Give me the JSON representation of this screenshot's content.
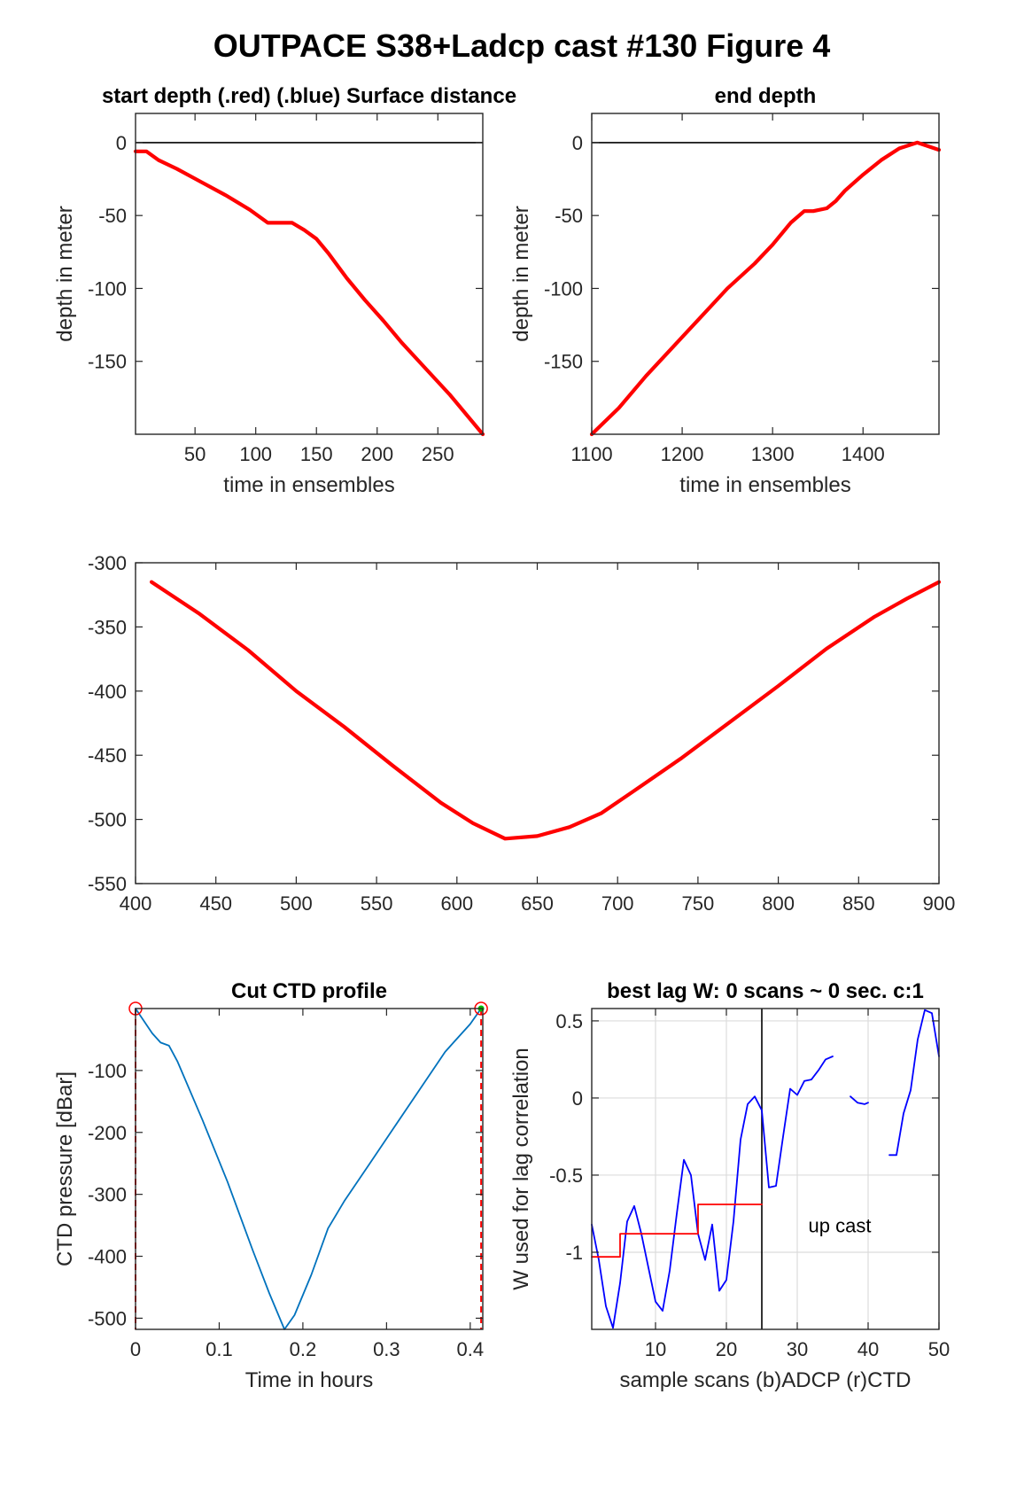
{
  "figure": {
    "title": "OUTPACE S38+Ladcp cast #130    Figure 4"
  },
  "chart_data": [
    {
      "id": "p1",
      "type": "line",
      "title": "start depth (.red) (.blue) Surface distance",
      "xlabel": "time in ensembles",
      "ylabel": "depth in meter",
      "xlim": [
        1,
        287
      ],
      "ylim": [
        -200,
        20
      ],
      "xticks": [
        50,
        100,
        150,
        200,
        250
      ],
      "yticks": [
        0,
        -50,
        -100,
        -150
      ],
      "zero_line": true,
      "grid": false,
      "series": [
        {
          "color": "#ff0000",
          "x": [
            1,
            10,
            20,
            35,
            55,
            75,
            95,
            110,
            130,
            140,
            150,
            160,
            175,
            190,
            205,
            220,
            240,
            260,
            287
          ],
          "y": [
            -6,
            -6,
            -12,
            -18,
            -27,
            -36,
            -46,
            -55,
            -55,
            -60,
            -66,
            -76,
            -93,
            -108,
            -122,
            -137,
            -155,
            -173,
            -200
          ]
        }
      ]
    },
    {
      "id": "p2",
      "type": "line",
      "title": "end depth",
      "xlabel": "time in ensembles",
      "ylabel": "depth in meter",
      "xlim": [
        1100,
        1484
      ],
      "ylim": [
        -200,
        20
      ],
      "xticks": [
        1100,
        1200,
        1300,
        1400
      ],
      "yticks": [
        0,
        -50,
        -100,
        -150
      ],
      "zero_line": true,
      "grid": false,
      "series": [
        {
          "color": "#ff0000",
          "x": [
            1100,
            1130,
            1160,
            1190,
            1220,
            1250,
            1280,
            1300,
            1320,
            1335,
            1345,
            1360,
            1370,
            1380,
            1400,
            1420,
            1440,
            1460,
            1484
          ],
          "y": [
            -200,
            -182,
            -160,
            -140,
            -120,
            -100,
            -83,
            -70,
            -55,
            -47,
            -47,
            -45,
            -40,
            -33,
            -22,
            -12,
            -4,
            0,
            -5
          ]
        }
      ]
    },
    {
      "id": "p3",
      "type": "line",
      "title": "",
      "xlabel": "",
      "ylabel": "",
      "xlim": [
        400,
        900
      ],
      "ylim": [
        -550,
        -300
      ],
      "xticks": [
        400,
        450,
        500,
        550,
        600,
        650,
        700,
        750,
        800,
        850,
        900
      ],
      "yticks": [
        -300,
        -350,
        -400,
        -450,
        -500,
        -550
      ],
      "zero_line": false,
      "grid": false,
      "series": [
        {
          "color": "#ff0000",
          "x": [
            410,
            440,
            470,
            500,
            530,
            560,
            590,
            610,
            630,
            650,
            670,
            690,
            710,
            740,
            770,
            800,
            830,
            860,
            880,
            900
          ],
          "y": [
            -315,
            -340,
            -368,
            -400,
            -428,
            -458,
            -487,
            -503,
            -515,
            -513,
            -506,
            -495,
            -478,
            -452,
            -424,
            -396,
            -367,
            -342,
            -328,
            -315
          ]
        }
      ]
    },
    {
      "id": "p4",
      "type": "line",
      "title": "Cut CTD profile",
      "xlabel": "Time in hours",
      "ylabel": "CTD pressure [dBar]",
      "xlim": [
        0,
        0.415
      ],
      "ylim": [
        -518,
        0
      ],
      "xticks": [
        0,
        0.1,
        0.2,
        0.3,
        0.4
      ],
      "xticklabels": [
        "0",
        "0.1",
        "0.2",
        "0.3",
        "0.4"
      ],
      "yticks": [
        -100,
        -200,
        -300,
        -400,
        -500
      ],
      "zero_line": false,
      "grid": false,
      "series": [
        {
          "color": "#0072bd",
          "x": [
            0,
            0.02,
            0.03,
            0.04,
            0.05,
            0.08,
            0.11,
            0.14,
            0.16,
            0.178,
            0.19,
            0.21,
            0.23,
            0.25,
            0.28,
            0.31,
            0.34,
            0.37,
            0.38,
            0.4,
            0.413
          ],
          "y": [
            0,
            -40,
            -55,
            -60,
            -85,
            -180,
            -280,
            -390,
            -460,
            -518,
            -495,
            -430,
            -355,
            -310,
            -250,
            -190,
            -130,
            -70,
            -55,
            -25,
            0
          ]
        }
      ],
      "cut_lines": [
        0,
        0.413
      ]
    },
    {
      "id": "p5",
      "type": "line",
      "title": "best lag W: 0 scans ~ 0 sec.  c:1",
      "xlabel": "sample scans (b)ADCP (r)CTD",
      "ylabel": "W used for lag correlation",
      "xlim": [
        1,
        50
      ],
      "ylim": [
        -1.5,
        0.58
      ],
      "xticks": [
        10,
        20,
        30,
        40,
        50
      ],
      "yticks": [
        0.5,
        0,
        -0.5,
        -1
      ],
      "zero_line": false,
      "grid": true,
      "vline": 25,
      "annotation": "up cast",
      "series": [
        {
          "color": "#0000ff",
          "segments": [
            {
              "x": [
                1,
                2,
                3,
                4,
                5,
                6,
                7,
                8,
                9,
                10,
                11,
                12,
                13,
                14,
                15,
                16,
                17,
                18,
                19,
                20,
                21,
                22,
                23,
                24,
                25,
                26,
                27,
                28,
                29,
                30,
                31,
                32,
                33,
                34,
                35
              ],
              "y": [
                -0.82,
                -1.05,
                -1.35,
                -1.49,
                -1.2,
                -0.8,
                -0.7,
                -0.88,
                -1.1,
                -1.32,
                -1.38,
                -1.12,
                -0.75,
                -0.4,
                -0.5,
                -0.88,
                -1.05,
                -0.82,
                -1.25,
                -1.18,
                -0.8,
                -0.27,
                -0.04,
                0.01,
                -0.08,
                -0.58,
                -0.57,
                -0.25,
                0.06,
                0.02,
                0.11,
                0.12,
                0.18,
                0.25,
                0.27
              ]
            },
            {
              "x": [
                37.5,
                38.5,
                39.5,
                40
              ],
              "y": [
                0.01,
                -0.03,
                -0.04,
                -0.03
              ]
            },
            {
              "x": [
                43,
                44,
                45,
                46,
                47,
                48,
                49,
                50
              ],
              "y": [
                -0.37,
                -0.37,
                -0.1,
                0.05,
                0.38,
                0.57,
                0.55,
                0.27
              ]
            }
          ]
        },
        {
          "color": "#ff0000",
          "segments": [
            {
              "x": [
                1,
                5,
                5,
                16,
                16,
                25
              ],
              "y": [
                -1.03,
                -1.03,
                -0.88,
                -0.88,
                -0.69,
                -0.69
              ]
            }
          ]
        }
      ]
    }
  ]
}
